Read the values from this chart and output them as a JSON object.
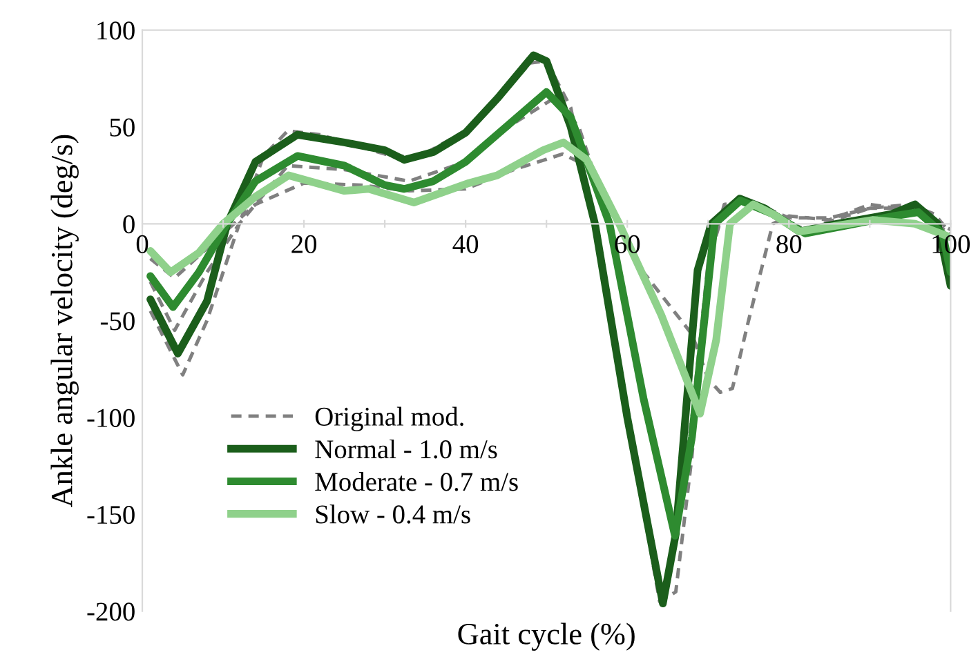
{
  "chart_data": {
    "type": "line",
    "xlabel": "Gait cycle (%)",
    "ylabel": "Ankle angular velocity (deg/s)",
    "xlim": [
      0,
      100
    ],
    "ylim": [
      -200,
      100
    ],
    "xticks": [
      0,
      {
        "value": 10,
        "label": null
      },
      20,
      {
        "value": 30,
        "label": null
      },
      40,
      {
        "value": 50,
        "label": null
      },
      60,
      {
        "value": 70,
        "label": null
      },
      80,
      {
        "value": 90,
        "label": null
      },
      100
    ],
    "yticks": [
      -200,
      -150,
      -100,
      -50,
      0,
      50,
      100
    ],
    "grid": false,
    "legend": "lower left",
    "marker": "none",
    "series": [
      {
        "name": "Original mod.",
        "color": "#808080",
        "line_style": "dashed",
        "x": [
          1,
          5,
          8,
          12,
          15,
          18,
          22,
          30,
          34,
          40,
          45,
          48,
          50,
          53,
          56,
          60,
          64,
          66,
          68,
          70,
          72,
          75,
          78,
          82,
          90,
          95,
          98,
          100
        ],
        "values": [
          -45,
          -78,
          -50,
          0,
          35,
          48,
          46,
          36,
          34,
          48,
          70,
          83,
          84,
          60,
          0,
          -100,
          -195,
          -190,
          -120,
          -20,
          8,
          12,
          5,
          -3,
          8,
          10,
          5,
          -5
        ]
      },
      {
        "color": "#808080",
        "line_style": "dashed",
        "x": [
          1,
          4,
          8,
          12,
          18,
          25,
          33,
          40,
          46,
          51,
          54,
          58,
          62,
          66,
          68,
          70,
          72,
          75,
          80,
          85,
          90,
          95,
          100
        ],
        "values": [
          -30,
          -55,
          -25,
          0,
          30,
          28,
          22,
          32,
          52,
          65,
          50,
          0,
          -90,
          -160,
          -100,
          -20,
          10,
          12,
          3,
          3,
          8,
          8,
          -3
        ]
      },
      {
        "color": "#808080",
        "line_style": "dashed",
        "x": [
          1,
          4,
          10,
          14,
          20,
          27,
          33,
          40,
          46,
          52,
          55,
          58,
          62,
          68,
          70,
          71.5,
          73,
          75,
          78,
          80,
          85,
          90,
          95,
          100
        ],
        "values": [
          -18,
          -28,
          -5,
          10,
          21,
          20,
          17,
          18,
          28,
          36,
          30,
          10,
          -25,
          -57,
          -80,
          -87,
          -85,
          -50,
          0,
          4,
          2,
          10,
          7,
          -5
        ]
      },
      {
        "name": "Normal - 1.0 m/s",
        "color": "#1b5e1b",
        "line_style": "solid",
        "x": [
          1,
          4.4,
          8,
          10.5,
          14,
          19.2,
          25,
          30,
          32.4,
          36,
          40,
          44,
          48.4,
          50,
          53,
          56,
          60,
          64.4,
          66,
          68.7,
          70.4,
          73.9,
          77,
          81.3,
          86,
          92.7,
          95.6,
          98.4,
          100
        ],
        "values": [
          -39,
          -67,
          -40,
          0,
          32,
          46,
          42,
          38,
          33,
          37,
          47,
          65,
          87,
          84,
          50,
          0,
          -100,
          -196,
          -160,
          -24,
          0,
          13,
          8,
          -4,
          0,
          5,
          10,
          0,
          -32
        ]
      },
      {
        "name": "Moderate - 0.7 m/s",
        "color": "#2e8b30",
        "line_style": "solid",
        "x": [
          1,
          3.8,
          7,
          10.5,
          14,
          19.2,
          25,
          30,
          32.4,
          36,
          40,
          45,
          50,
          53,
          57.8,
          62,
          65.9,
          68,
          70.8,
          74,
          78,
          82,
          87,
          93,
          96,
          99,
          100
        ],
        "values": [
          -27,
          -43,
          -25,
          0,
          22,
          35,
          30,
          20,
          18,
          22,
          32,
          50,
          68,
          55,
          0,
          -90,
          -161,
          -110,
          0,
          12,
          5,
          -5,
          -1,
          4,
          6,
          -5,
          -25
        ]
      },
      {
        "name": "Slow - 0.4 m/s",
        "color": "#8fd18b",
        "line_style": "solid",
        "x": [
          1,
          3.5,
          7,
          10,
          14,
          18.1,
          25,
          28,
          33.6,
          40.4,
          43.9,
          49.6,
          52.1,
          55,
          59,
          64.2,
          69,
          71,
          72.7,
          75.6,
          78,
          81.3,
          90.4,
          95.6,
          100
        ],
        "values": [
          -14,
          -25,
          -15,
          0,
          14,
          25,
          17,
          18,
          11,
          21,
          25,
          38,
          42,
          33,
          0,
          -47,
          -98,
          -60,
          0,
          10,
          5,
          -4,
          2,
          0,
          -7
        ]
      }
    ]
  }
}
